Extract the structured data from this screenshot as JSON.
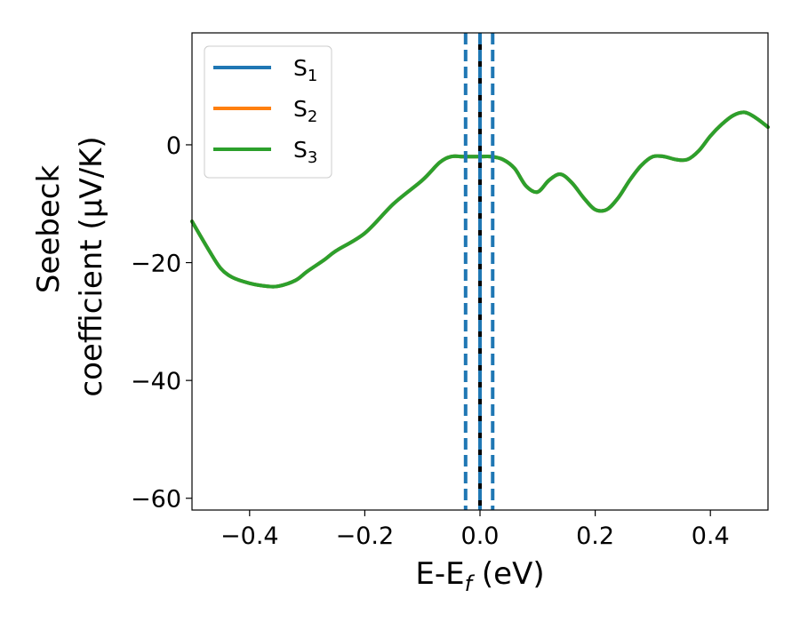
{
  "chart_data": {
    "type": "line",
    "xlabel": {
      "base": "E-E",
      "subscript": "f",
      "suffix": " (eV)"
    },
    "ylabel": {
      "line1": "Seebeck",
      "line2": "coefficient  (μV/K)"
    },
    "xlim": [
      -0.5,
      0.5
    ],
    "ylim": [
      -62,
      19
    ],
    "xticks": [
      -0.4,
      -0.2,
      0.0,
      0.2,
      0.4
    ],
    "xtick_labels": [
      "−0.4",
      "−0.2",
      "0.0",
      "0.2",
      "0.4"
    ],
    "yticks": [
      0,
      -20,
      -40,
      -60
    ],
    "ytick_labels": [
      "0",
      "−20",
      "−40",
      "−60"
    ],
    "legend_position": "top-left",
    "series": [
      {
        "name": "S1",
        "label_base": "S",
        "label_sub": "1",
        "color": "#1f77b4",
        "x": [
          -0.5,
          -0.47,
          -0.45,
          -0.43,
          -0.4,
          -0.37,
          -0.35,
          -0.32,
          -0.3,
          -0.27,
          -0.25,
          -0.2,
          -0.15,
          -0.1,
          -0.07,
          -0.05,
          -0.03,
          -0.01,
          0.0,
          0.02,
          0.04,
          0.06,
          0.08,
          0.1,
          0.12,
          0.14,
          0.16,
          0.18,
          0.2,
          0.22,
          0.24,
          0.26,
          0.28,
          0.3,
          0.32,
          0.34,
          0.36,
          0.38,
          0.4,
          0.42,
          0.44,
          0.46,
          0.48,
          0.5
        ],
        "y": [
          -13,
          -18,
          -21,
          -22.5,
          -23.5,
          -24,
          -24,
          -23,
          -21.5,
          -19.5,
          -18,
          -15,
          -10,
          -6,
          -3,
          -2,
          -2,
          -2,
          -2,
          -2,
          -2.5,
          -4,
          -7,
          -8,
          -6,
          -5,
          -6.5,
          -9,
          -11,
          -11,
          -9,
          -6,
          -3.5,
          -2,
          -2,
          -2.5,
          -2.5,
          -1,
          1.5,
          3.5,
          5,
          5.5,
          4.5,
          3
        ]
      },
      {
        "name": "S2",
        "label_base": "S",
        "label_sub": "2",
        "color": "#ff7f0e",
        "x": [
          -0.5,
          -0.47,
          -0.45,
          -0.43,
          -0.4,
          -0.37,
          -0.35,
          -0.32,
          -0.3,
          -0.27,
          -0.25,
          -0.2,
          -0.15,
          -0.1,
          -0.07,
          -0.05,
          -0.03,
          -0.01,
          0.0,
          0.02,
          0.04,
          0.06,
          0.08,
          0.1,
          0.12,
          0.14,
          0.16,
          0.18,
          0.2,
          0.22,
          0.24,
          0.26,
          0.28,
          0.3,
          0.32,
          0.34,
          0.36,
          0.38,
          0.4,
          0.42,
          0.44,
          0.46,
          0.48,
          0.5
        ],
        "y": [
          -13,
          -18,
          -21,
          -22.5,
          -23.5,
          -24,
          -24,
          -23,
          -21.5,
          -19.5,
          -18,
          -15,
          -10,
          -6,
          -3,
          -2,
          -2,
          -2,
          -2,
          -2,
          -2.5,
          -4,
          -7,
          -8,
          -6,
          -5,
          -6.5,
          -9,
          -11,
          -11,
          -9,
          -6,
          -3.5,
          -2,
          -2,
          -2.5,
          -2.5,
          -1,
          1.5,
          3.5,
          5,
          5.5,
          4.5,
          3
        ]
      },
      {
        "name": "S3",
        "label_base": "S",
        "label_sub": "3",
        "color": "#2ca02c",
        "x": [
          -0.5,
          -0.47,
          -0.45,
          -0.43,
          -0.4,
          -0.37,
          -0.35,
          -0.32,
          -0.3,
          -0.27,
          -0.25,
          -0.2,
          -0.15,
          -0.1,
          -0.07,
          -0.05,
          -0.03,
          -0.01,
          0.0,
          0.02,
          0.04,
          0.06,
          0.08,
          0.1,
          0.12,
          0.14,
          0.16,
          0.18,
          0.2,
          0.22,
          0.24,
          0.26,
          0.28,
          0.3,
          0.32,
          0.34,
          0.36,
          0.38,
          0.4,
          0.42,
          0.44,
          0.46,
          0.48,
          0.5
        ],
        "y": [
          -13,
          -18,
          -21,
          -22.5,
          -23.5,
          -24,
          -24,
          -23,
          -21.5,
          -19.5,
          -18,
          -15,
          -10,
          -6,
          -3,
          -2,
          -2,
          -2,
          -2,
          -2,
          -2.5,
          -4,
          -7,
          -8,
          -6,
          -5,
          -6.5,
          -9,
          -11,
          -11,
          -9,
          -6,
          -3.5,
          -2,
          -2,
          -2.5,
          -2.5,
          -1,
          1.5,
          3.5,
          5,
          5.5,
          4.5,
          3
        ]
      }
    ],
    "vlines": [
      {
        "name": "fermi-level-line",
        "x": 0.0,
        "style": "solid",
        "color": "#000000"
      },
      {
        "name": "lower-bound-dashed-line",
        "x": -0.025,
        "style": "dashed",
        "color": "#1f77b4"
      },
      {
        "name": "fermi-dashed-line",
        "x": 0.0,
        "style": "dashed",
        "color": "#1f77b4"
      },
      {
        "name": "upper-bound-dashed-line",
        "x": 0.022,
        "style": "dashed",
        "color": "#1f77b4"
      }
    ]
  }
}
